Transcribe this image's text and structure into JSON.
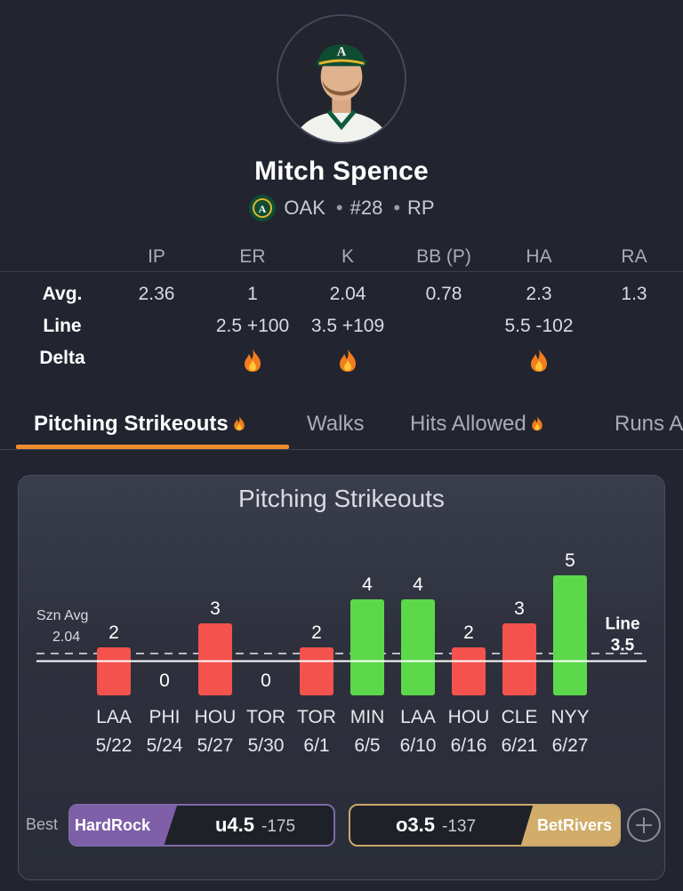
{
  "player": {
    "name": "Mitch Spence",
    "team": "OAK",
    "number": "#28",
    "position": "RP",
    "dot": "•"
  },
  "stats": {
    "columns": [
      "IP",
      "ER",
      "K",
      "BB (P)",
      "HA",
      "RA"
    ],
    "rows": [
      {
        "label": "Avg.",
        "values": [
          "2.36",
          "1",
          "2.04",
          "0.78",
          "2.3",
          "1.3"
        ]
      },
      {
        "label": "Line",
        "values": [
          "",
          "2.5 +100",
          "3.5 +109",
          "",
          "5.5 -102",
          ""
        ]
      },
      {
        "label": "Delta",
        "fire": [
          false,
          true,
          true,
          false,
          true,
          false
        ]
      }
    ]
  },
  "tabs": [
    {
      "label": "Pitching Strikeouts",
      "fire": true,
      "active": true
    },
    {
      "label": "Walks",
      "fire": false,
      "active": false
    },
    {
      "label": "Hits Allowed",
      "fire": true,
      "active": false
    },
    {
      "label": "Runs A",
      "fire": false,
      "active": false
    }
  ],
  "card": {
    "title": "Pitching Strikeouts",
    "best_label": "Best",
    "under": {
      "book": "HardRock",
      "line": "u4.5",
      "odds": "-175"
    },
    "over": {
      "book": "BetRivers",
      "line": "o3.5",
      "odds": "-137"
    }
  },
  "chart_data": {
    "type": "bar",
    "title": "Pitching Strikeouts",
    "categories": [
      "LAA",
      "PHI",
      "HOU",
      "TOR",
      "TOR",
      "MIN",
      "LAA",
      "HOU",
      "CLE",
      "NYY"
    ],
    "dates": [
      "5/22",
      "5/24",
      "5/27",
      "5/30",
      "6/1",
      "6/5",
      "6/10",
      "6/16",
      "6/21",
      "6/27"
    ],
    "values": [
      2,
      0,
      3,
      0,
      2,
      4,
      4,
      2,
      3,
      5
    ],
    "line": 3.5,
    "line_label": [
      "Line",
      "3.5"
    ],
    "season_avg": 2.04,
    "season_avg_label": [
      "Szn Avg",
      "2.04"
    ],
    "colors": {
      "over": "#5bd94a",
      "under": "#f4524c"
    },
    "ylim": [
      0,
      5
    ]
  },
  "colors": {
    "accent": "#f08b2e",
    "background": "#222530"
  }
}
